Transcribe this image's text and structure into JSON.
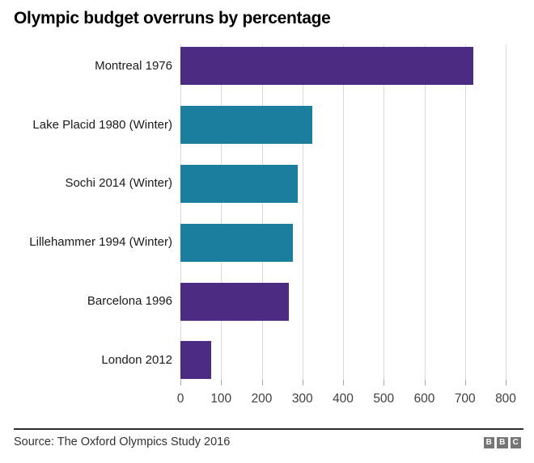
{
  "title": "Olympic budget overruns by percentage",
  "source": "Source: The Oxford Olympics Study 2016",
  "logo": {
    "name": "BBC",
    "letters": [
      "B",
      "B",
      "C"
    ]
  },
  "colors": {
    "purple": "#4c2c82",
    "teal": "#1a7e9c",
    "gridline": "#d9d9d9",
    "tick": "#a6a6a6",
    "category_text": "#1a1a1a",
    "axis_text": "#404040",
    "footer_line": "#2e2e2e",
    "source_text": "#333333",
    "logo_gray": "#757575",
    "background": "#ffffff"
  },
  "chart_data": {
    "type": "bar",
    "orientation": "horizontal",
    "title": "Olympic budget overruns by percentage",
    "categories": [
      "Montreal 1976",
      "Lake Placid 1980 (Winter)",
      "Sochi 2014 (Winter)",
      "Lillehammer 1994 (Winter)",
      "Barcelona 1996",
      "London 2012"
    ],
    "values": [
      720,
      324,
      289,
      277,
      266,
      76
    ],
    "bar_colors": [
      "#4c2c82",
      "#1a7e9c",
      "#1a7e9c",
      "#1a7e9c",
      "#4c2c82",
      "#4c2c82"
    ],
    "xlabel": "",
    "ylabel": "",
    "xlim": [
      0,
      800
    ],
    "x_ticks": [
      0,
      100,
      200,
      300,
      400,
      500,
      600,
      700,
      800
    ],
    "grid": true,
    "legend": false,
    "unit": "percent"
  }
}
